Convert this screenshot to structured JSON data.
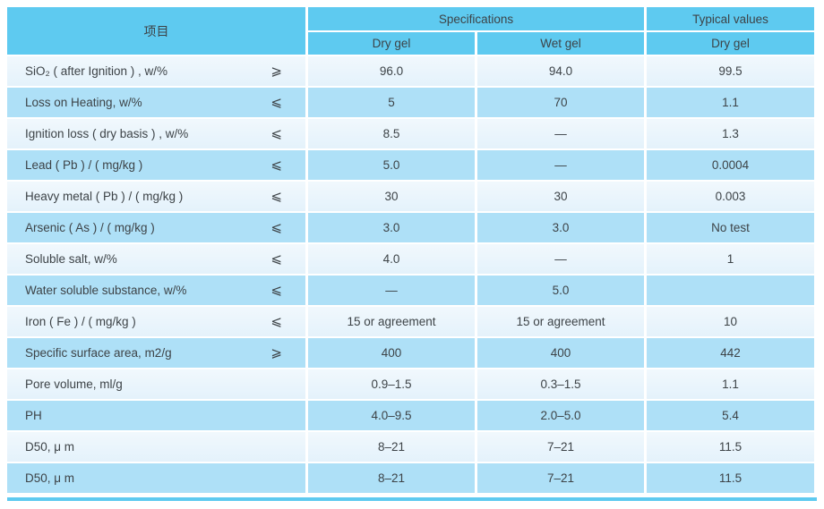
{
  "colors": {
    "header_blue": "#5ecaf0",
    "row_medium_blue": "#aee0f7",
    "row_light_blue": "#e9f4fc",
    "text": "#3d4347",
    "bottom_bar_blue": "#5ecaf0"
  },
  "table": {
    "header": {
      "item": "项目",
      "specifications": "Specifications",
      "typical_values": "Typical values",
      "spec_dry_gel": "Dry gel",
      "spec_wet_gel": "Wet gel",
      "typical_dry_gel": "Dry gel"
    },
    "rows": [
      {
        "item": "SiO₂ ( after Ignition ) , w/%",
        "op": "⩾",
        "dry_gel": "96.0",
        "wet_gel": "94.0",
        "typical": "99.5"
      },
      {
        "item": "Loss on Heating, w/%",
        "op": "⩽",
        "dry_gel": "5",
        "wet_gel": "70",
        "typical": "1.1"
      },
      {
        "item": "Ignition loss ( dry basis ) , w/%",
        "op": "⩽",
        "dry_gel": "8.5",
        "wet_gel": "—",
        "typical": "1.3"
      },
      {
        "item": "Lead ( Pb ) / ( mg/kg )",
        "op": "⩽",
        "dry_gel": "5.0",
        "wet_gel": "—",
        "typical": "0.0004"
      },
      {
        "item": "Heavy metal ( Pb ) / ( mg/kg )",
        "op": "⩽",
        "dry_gel": "30",
        "wet_gel": "30",
        "typical": "0.003"
      },
      {
        "item": "Arsenic ( As ) / ( mg/kg )",
        "op": "⩽",
        "dry_gel": "3.0",
        "wet_gel": "3.0",
        "typical": "No test"
      },
      {
        "item": "Soluble salt, w/%",
        "op": "⩽",
        "dry_gel": "4.0",
        "wet_gel": "—",
        "typical": "1"
      },
      {
        "item": "Water soluble substance, w/%",
        "op": "⩽",
        "dry_gel": "—",
        "wet_gel": "5.0",
        "typical": ""
      },
      {
        "item": "Iron ( Fe ) / ( mg/kg )",
        "op": "⩽",
        "dry_gel": "15 or agreement",
        "wet_gel": "15 or agreement",
        "typical": "10"
      },
      {
        "item": "Specific surface area, m2/g",
        "op": "⩾",
        "dry_gel": "400",
        "wet_gel": "400",
        "typical": "442"
      },
      {
        "item": "Pore volume, ml/g",
        "op": "",
        "dry_gel": "0.9–1.5",
        "wet_gel": "0.3–1.5",
        "typical": "1.1"
      },
      {
        "item": "PH",
        "op": "",
        "dry_gel": "4.0–9.5",
        "wet_gel": "2.0–5.0",
        "typical": "5.4"
      },
      {
        "item": "D50, μ m",
        "op": "",
        "dry_gel": "8–21",
        "wet_gel": "7–21",
        "typical": "11.5"
      },
      {
        "item": "D50, μ m",
        "op": "",
        "dry_gel": "8–21",
        "wet_gel": "7–21",
        "typical": "11.5"
      }
    ]
  }
}
